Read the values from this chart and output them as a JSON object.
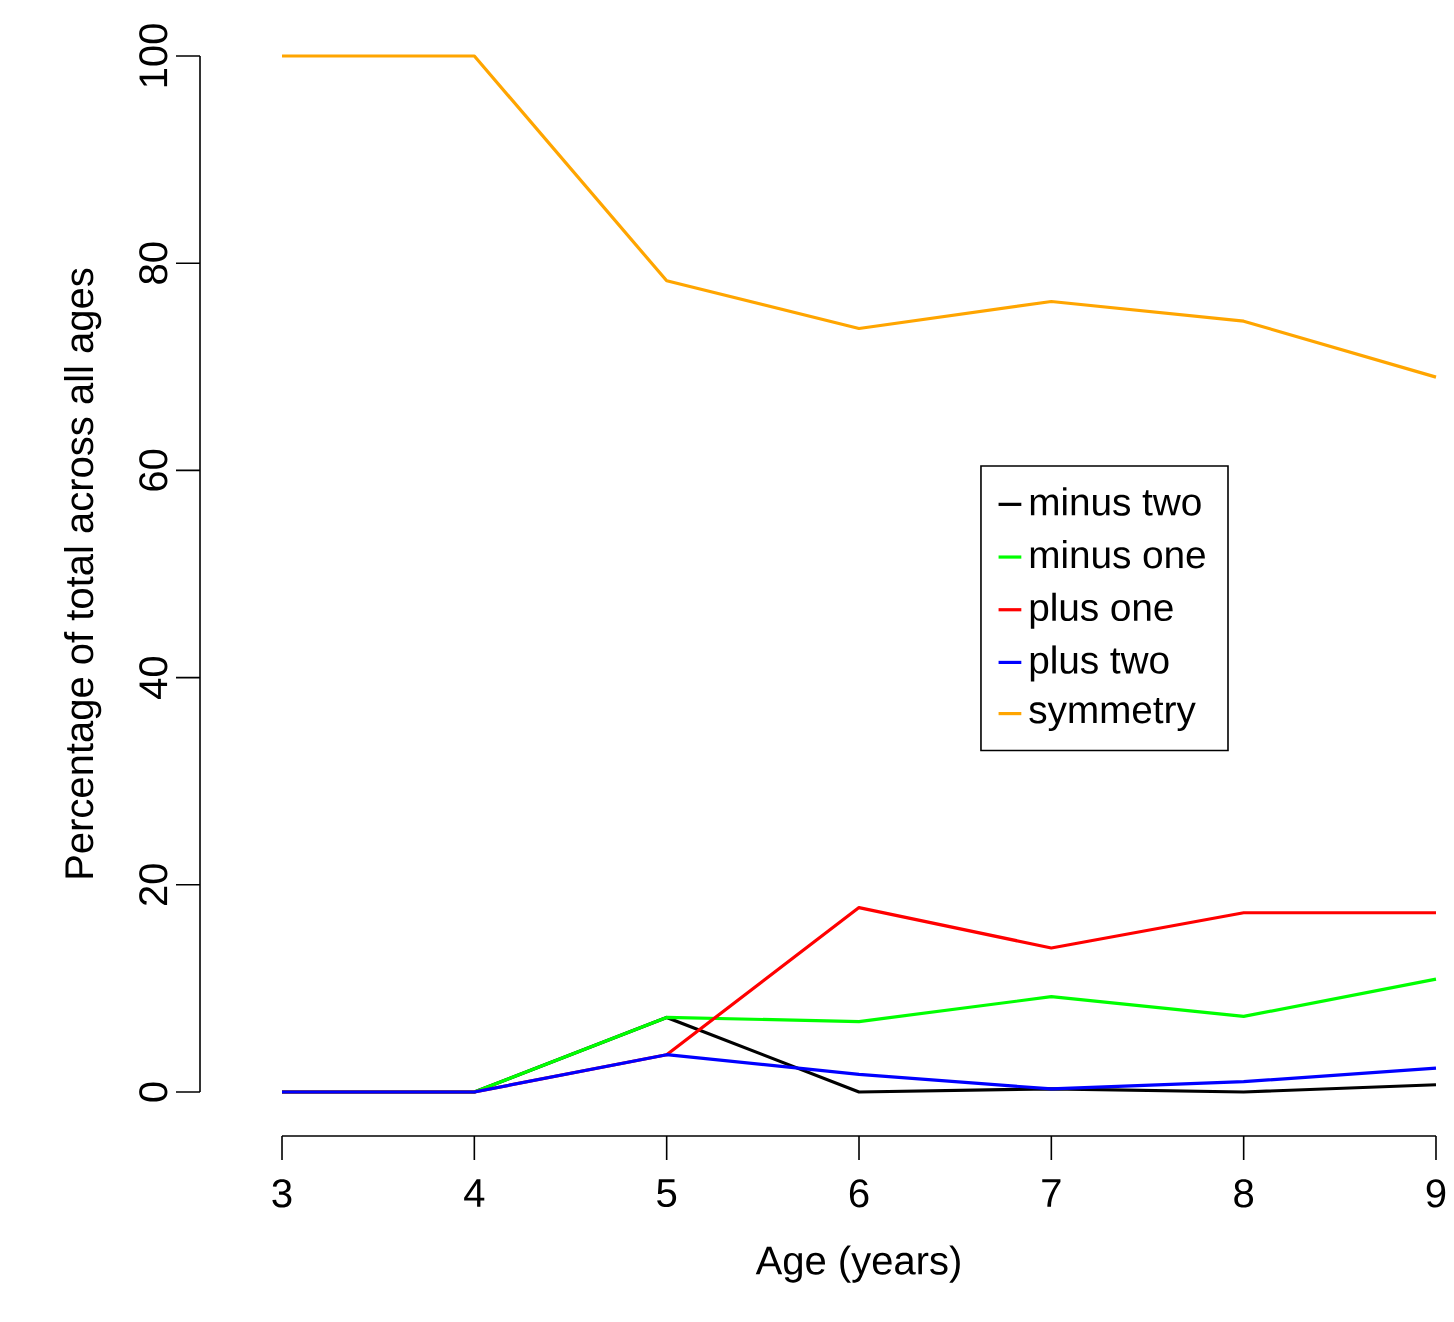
{
  "chart_data": {
    "type": "line",
    "xlabel": "Age (years)",
    "ylabel": "Percentage of total across all ages",
    "x": [
      3,
      4,
      5,
      6,
      7,
      8,
      9
    ],
    "series": [
      {
        "name": "minus two",
        "color": "#000000",
        "values": [
          0,
          0,
          7.2,
          0,
          0.3,
          0,
          0.7
        ]
      },
      {
        "name": "minus one",
        "color": "#00ff00",
        "values": [
          0,
          0,
          7.2,
          6.8,
          9.2,
          7.3,
          10.9
        ]
      },
      {
        "name": "plus one",
        "color": "#ff0000",
        "values": [
          0,
          0,
          3.6,
          17.8,
          13.9,
          17.3,
          17.3
        ]
      },
      {
        "name": "plus two",
        "color": "#0000ff",
        "values": [
          0,
          0,
          3.6,
          1.7,
          0.3,
          1.0,
          2.3
        ]
      },
      {
        "name": "symmetry",
        "color": "#ffa500",
        "values": [
          100,
          100,
          78.3,
          73.7,
          76.3,
          74.4,
          69.0
        ]
      }
    ],
    "xlim": [
      3,
      9
    ],
    "ylim": [
      0,
      100
    ],
    "xticks": [
      3,
      4,
      5,
      6,
      7,
      8,
      9
    ],
    "yticks": [
      0,
      20,
      40,
      60,
      80,
      100
    ],
    "legend": "right",
    "grid": false,
    "marker": "none",
    "line_style": "solid"
  }
}
